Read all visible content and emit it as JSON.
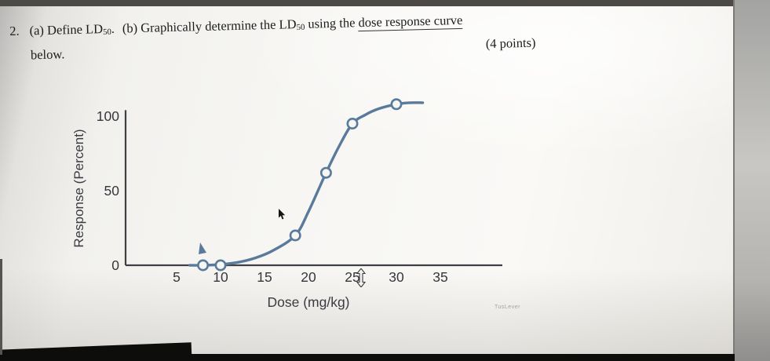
{
  "colors": {
    "curve": "#5a7a9b",
    "axis": "#3f4045",
    "page_text": "#1c1c1c"
  },
  "question": {
    "number": "2.",
    "a_prefix": "(a) Define LD",
    "a_sub": "50",
    "a_period": ".",
    "b_prefix": "(b) Graphically determine the LD",
    "b_sub": "50",
    "b_mid": " using the ",
    "b_underlined": "dose response curve",
    "line2": "below.",
    "points": "(4 points)"
  },
  "watermark_text": "TusLever",
  "chart_data": {
    "type": "line",
    "title": "",
    "xlabel": "Dose (mg/kg)",
    "ylabel": "Response (Percent)",
    "x_ticks": [
      5,
      10,
      15,
      20,
      25,
      30,
      35
    ],
    "y_ticks": [
      0,
      50,
      100
    ],
    "xlim": [
      0,
      42
    ],
    "ylim": [
      0,
      112
    ],
    "grid": false,
    "legend": false,
    "series": [
      {
        "name": "dose-response curve",
        "marker_points": [
          [
            8,
            0
          ],
          [
            10,
            0
          ],
          [
            18.5,
            20
          ],
          [
            22,
            62
          ],
          [
            25,
            95
          ],
          [
            30,
            108
          ]
        ],
        "smooth_points": [
          [
            6.5,
            0
          ],
          [
            8,
            0
          ],
          [
            10,
            0.5
          ],
          [
            12,
            2
          ],
          [
            14,
            5
          ],
          [
            16,
            10
          ],
          [
            18.5,
            20
          ],
          [
            20,
            36
          ],
          [
            22,
            62
          ],
          [
            23.5,
            80
          ],
          [
            25,
            95
          ],
          [
            26.5,
            101
          ],
          [
            28,
            105
          ],
          [
            30,
            108
          ],
          [
            31.5,
            109
          ],
          [
            33,
            109
          ]
        ]
      }
    ]
  }
}
